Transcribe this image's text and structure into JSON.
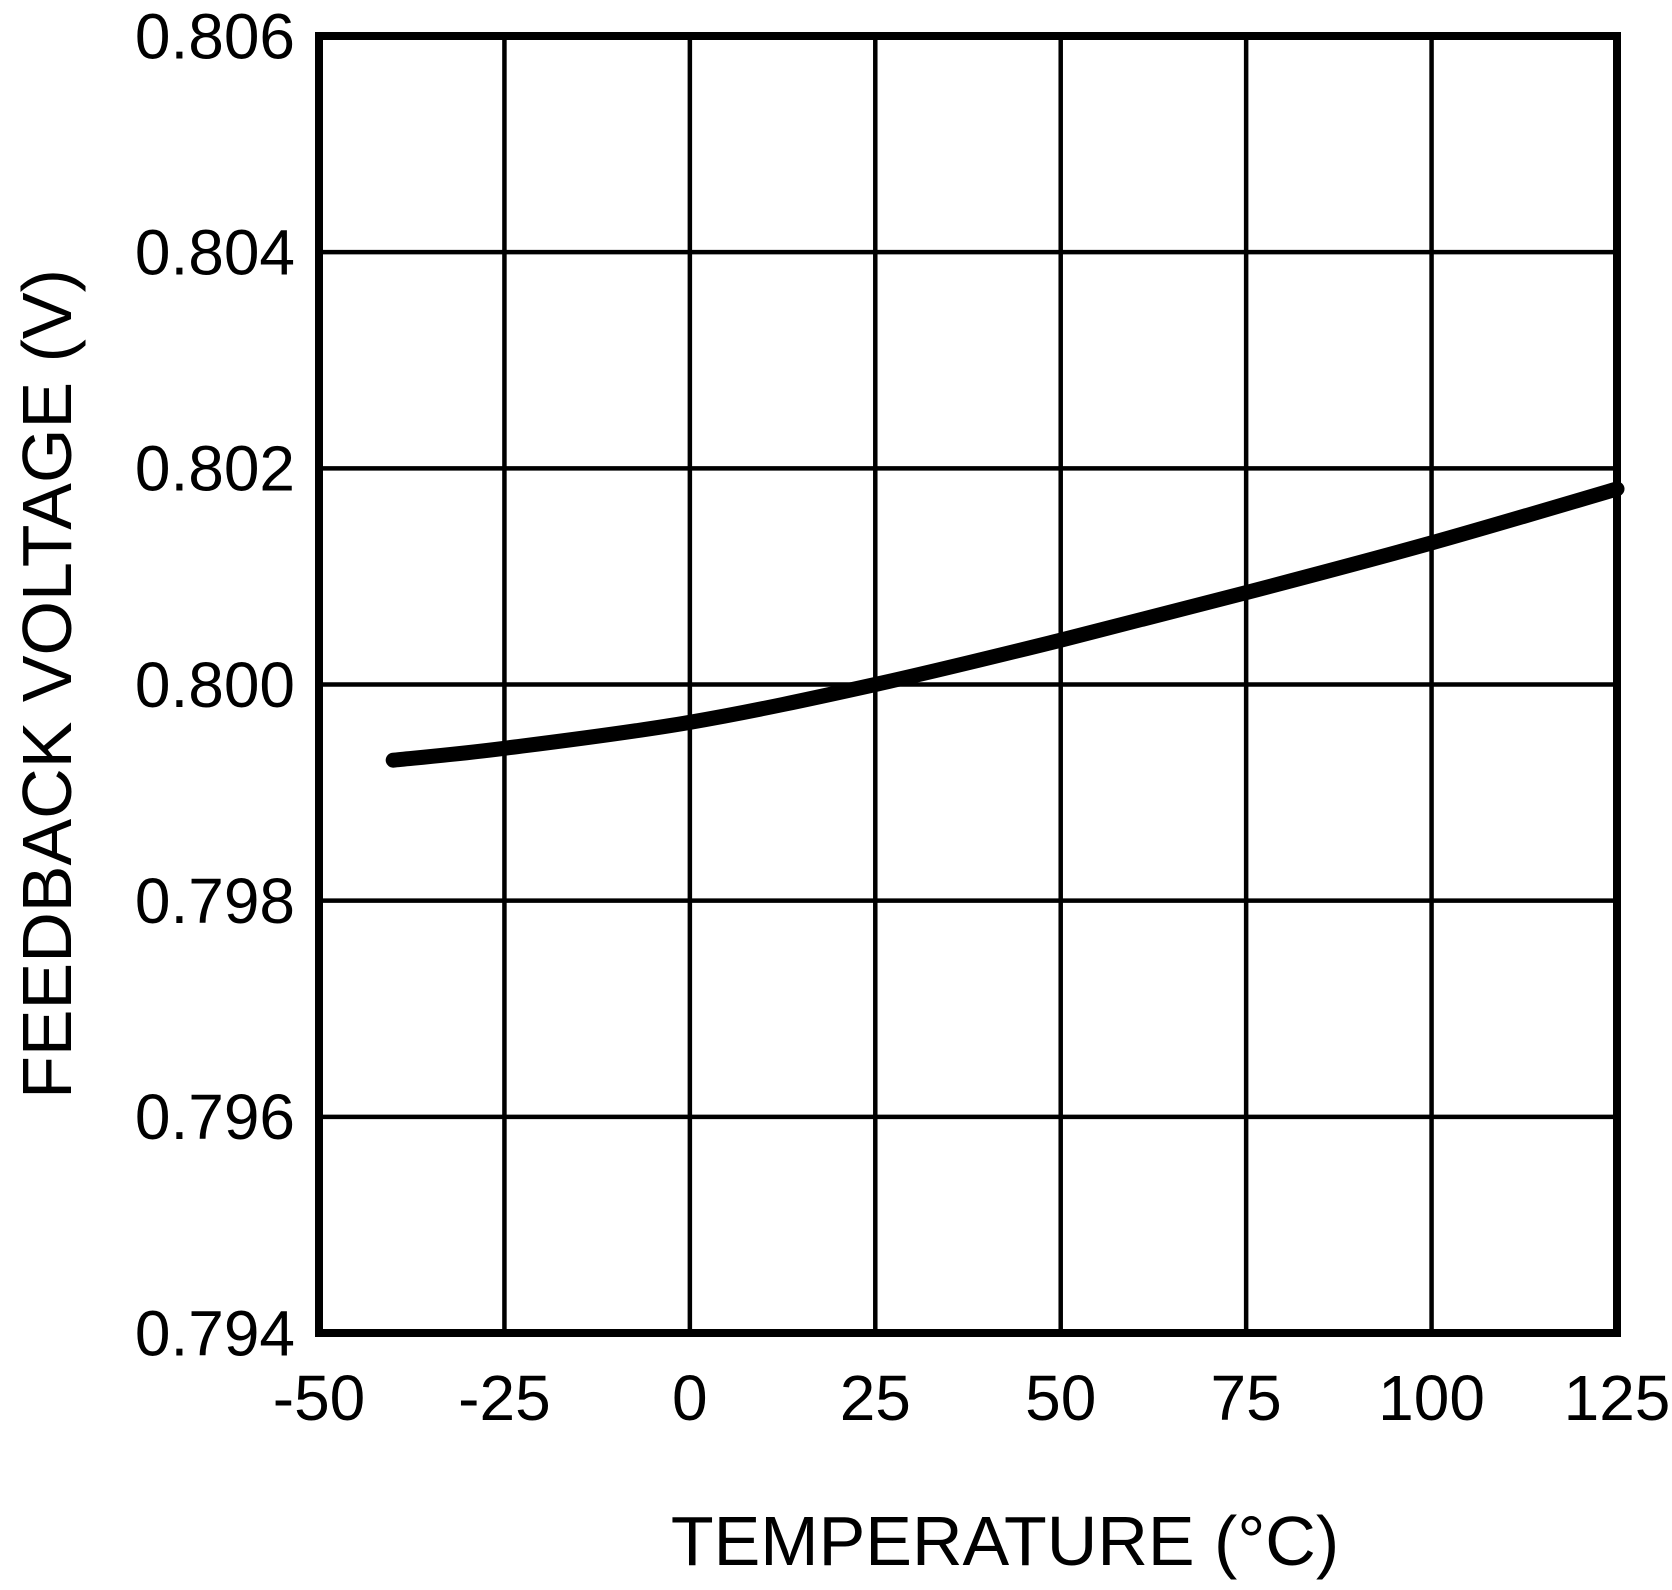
{
  "chart_data": {
    "type": "line",
    "title": "",
    "xlabel": "TEMPERATURE (°C)",
    "ylabel": "FEEDBACK VOLTAGE (V)",
    "xlim": [
      -50,
      125
    ],
    "ylim": [
      0.794,
      0.806
    ],
    "xticks": [
      -50,
      -25,
      0,
      25,
      50,
      75,
      100,
      125
    ],
    "xtick_labels": [
      "-50",
      "-25",
      "0",
      "25",
      "50",
      "75",
      "100",
      "125"
    ],
    "yticks": [
      0.794,
      0.796,
      0.798,
      0.8,
      0.802,
      0.804,
      0.806
    ],
    "ytick_labels": [
      "0.794",
      "0.796",
      "0.798",
      "0.800",
      "0.802",
      "0.804",
      "0.806"
    ],
    "grid": true,
    "legend": "none",
    "series": [
      {
        "name": "feedback_voltage_vs_temperature",
        "x": [
          -40,
          -25,
          0,
          25,
          50,
          75,
          100,
          125
        ],
        "y": [
          0.7993,
          0.79941,
          0.79965,
          0.8,
          0.80041,
          0.80085,
          0.80131,
          0.80181
        ]
      }
    ],
    "colors": {
      "line": "#000000",
      "grid": "#000000",
      "frame": "#000000",
      "text": "#000000",
      "background": "#ffffff"
    }
  }
}
